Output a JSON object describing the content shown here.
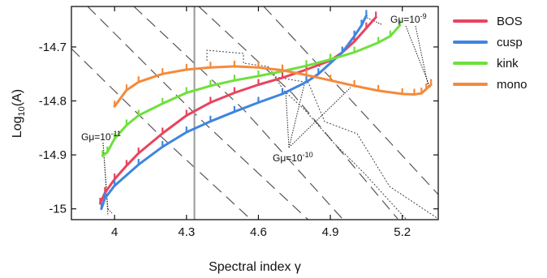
{
  "chart_data": {
    "type": "line",
    "xlabel": "Spectral index γ",
    "ylabel_main": "Log",
    "ylabel_sub": "10",
    "ylabel_tail": "(A)",
    "xlim": [
      3.82,
      5.35
    ],
    "ylim": [
      -15.02,
      -14.625
    ],
    "xticks": [
      4.0,
      4.3,
      4.6,
      4.9,
      5.2
    ],
    "xtick_labels": [
      "4",
      "4.3",
      "4.6",
      "4.9",
      "5.2"
    ],
    "yticks": [
      -14.7,
      -14.8,
      -14.9,
      -15.0
    ],
    "ytick_labels": [
      "-14.7",
      "-14.8",
      "-14.9",
      "-15"
    ],
    "vertical_line_x": 4.333,
    "series": [
      {
        "name": "BOS",
        "color": "#e8445f",
        "x": [
          3.94,
          3.96,
          4.0,
          4.05,
          4.1,
          4.2,
          4.3,
          4.4,
          4.5,
          4.6,
          4.7,
          4.8,
          4.9,
          4.95,
          5.0,
          5.05,
          5.09
        ],
        "y": [
          -14.99,
          -14.97,
          -14.945,
          -14.92,
          -14.897,
          -14.86,
          -14.827,
          -14.803,
          -14.785,
          -14.77,
          -14.757,
          -14.742,
          -14.725,
          -14.71,
          -14.69,
          -14.665,
          -14.645
        ]
      },
      {
        "name": "cusp",
        "color": "#3e85e0",
        "x": [
          3.945,
          3.96,
          4.0,
          4.1,
          4.2,
          4.3,
          4.4,
          4.5,
          4.6,
          4.7,
          4.8,
          4.85,
          4.9,
          4.95,
          5.0,
          5.03,
          5.05
        ],
        "y": [
          -15.0,
          -14.98,
          -14.957,
          -14.918,
          -14.885,
          -14.858,
          -14.838,
          -14.82,
          -14.803,
          -14.787,
          -14.765,
          -14.75,
          -14.73,
          -14.71,
          -14.68,
          -14.66,
          -14.642
        ]
      },
      {
        "name": "kink",
        "color": "#6ee03d",
        "x": [
          3.95,
          3.97,
          4.0,
          4.05,
          4.1,
          4.2,
          4.3,
          4.4,
          4.5,
          4.6,
          4.7,
          4.8,
          4.9,
          5.0,
          5.1,
          5.15,
          5.19
        ],
        "y": [
          -14.902,
          -14.895,
          -14.87,
          -14.845,
          -14.827,
          -14.805,
          -14.785,
          -14.772,
          -14.762,
          -14.754,
          -14.745,
          -14.735,
          -14.723,
          -14.71,
          -14.692,
          -14.68,
          -14.66
        ]
      },
      {
        "name": "mono",
        "color": "#f58a3a",
        "x": [
          4.0,
          4.05,
          4.1,
          4.2,
          4.3,
          4.4,
          4.5,
          4.6,
          4.7,
          4.8,
          4.9,
          5.0,
          5.1,
          5.2,
          5.25,
          5.28,
          5.3,
          5.32
        ],
        "y": [
          -14.81,
          -14.78,
          -14.765,
          -14.75,
          -14.742,
          -14.738,
          -14.736,
          -14.738,
          -14.743,
          -14.752,
          -14.762,
          -14.772,
          -14.781,
          -14.787,
          -14.788,
          -14.786,
          -14.778,
          -14.77
        ]
      }
    ],
    "legend": {
      "placement": "right-outside",
      "entries": [
        {
          "label": "BOS",
          "color": "#e8445f"
        },
        {
          "label": "cusp",
          "color": "#3e85e0"
        },
        {
          "label": "kink",
          "color": "#6ee03d"
        },
        {
          "label": "mono",
          "color": "#f58a3a"
        }
      ]
    },
    "annotations": [
      {
        "text_main": "Gμ=10",
        "text_exp": "-11"
      },
      {
        "text_main": "Gμ=10",
        "text_exp": "-10"
      },
      {
        "text_main": "Gμ=10",
        "text_exp": "-9"
      }
    ]
  }
}
